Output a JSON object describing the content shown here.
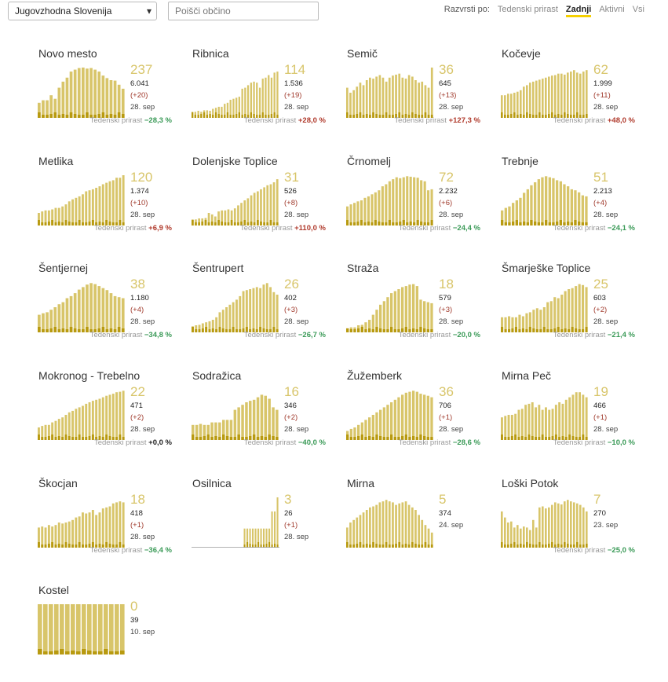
{
  "topbar": {
    "region_select": "Jugovzhodna Slovenija",
    "search_placeholder": "Poišči občino",
    "sort_label": "Razvrsti po:",
    "sort_options": [
      "Tedenski prirast",
      "Zadnji",
      "Aktivni",
      "Vsi"
    ],
    "sort_active": "Zadnji"
  },
  "colors": {
    "bar_light": "#d8c56a",
    "bar_dark": "#b89a10",
    "negative": "#3a9a57",
    "positive": "#b03a2c"
  },
  "footer_label": "Tedenski prirast",
  "chart_data": [
    {
      "type": "bar",
      "title": "Novo mesto",
      "active": "237",
      "total": "6.041",
      "change": "(+20)",
      "date": "28. sep",
      "weekly": "−28,3 %",
      "trend": "neg",
      "values": [
        30,
        35,
        35,
        45,
        38,
        60,
        72,
        80,
        92,
        96,
        99,
        100,
        98,
        99,
        96,
        92,
        84,
        79,
        75,
        74,
        66,
        58
      ]
    },
    {
      "type": "bar",
      "title": "Ribnica",
      "active": "114",
      "total": "1.536",
      "change": "(+19)",
      "date": "28. sep",
      "weekly": "+28,0 %",
      "trend": "pos",
      "values": [
        12,
        12,
        14,
        12,
        15,
        15,
        14,
        18,
        20,
        22,
        22,
        28,
        30,
        36,
        38,
        40,
        42,
        58,
        60,
        65,
        70,
        72,
        70,
        60,
        78,
        80,
        85,
        80,
        90,
        92
      ]
    },
    {
      "type": "bar",
      "title": "Semič",
      "active": "36",
      "total": "645",
      "change": "(+13)",
      "date": "28. sep",
      "weekly": "+127,3 %",
      "trend": "pos",
      "values": [
        60,
        50,
        55,
        62,
        70,
        65,
        75,
        80,
        78,
        82,
        85,
        80,
        72,
        80,
        84,
        86,
        88,
        80,
        78,
        85,
        82,
        75,
        70,
        72,
        65,
        60,
        100
      ]
    },
    {
      "type": "bar",
      "title": "Kočevje",
      "active": "62",
      "total": "1.999",
      "change": "(+11)",
      "date": "28. sep",
      "weekly": "+48,0 %",
      "trend": "pos",
      "values": [
        45,
        45,
        48,
        48,
        50,
        52,
        55,
        62,
        65,
        70,
        72,
        74,
        76,
        78,
        80,
        82,
        84,
        85,
        88,
        88,
        86,
        90,
        92,
        95,
        90,
        88,
        92,
        95
      ]
    },
    {
      "type": "bar",
      "title": "Metlika",
      "active": "120",
      "total": "1.374",
      "change": "(+10)",
      "date": "28. sep",
      "weekly": "+6,9 %",
      "trend": "pos",
      "values": [
        25,
        28,
        30,
        30,
        32,
        35,
        35,
        38,
        42,
        48,
        52,
        55,
        58,
        62,
        68,
        70,
        72,
        75,
        78,
        82,
        85,
        88,
        90,
        95,
        95,
        100
      ]
    },
    {
      "type": "bar",
      "title": "Dolenjske Toplice",
      "active": "31",
      "total": "526",
      "change": "(+8)",
      "date": "28. sep",
      "weekly": "+110,0 %",
      "trend": "pos",
      "values": [
        12,
        12,
        14,
        14,
        15,
        25,
        22,
        18,
        28,
        30,
        30,
        32,
        30,
        34,
        40,
        45,
        50,
        54,
        60,
        65,
        68,
        72,
        76,
        80,
        82,
        86,
        92
      ]
    },
    {
      "type": "bar",
      "title": "Črnomelj",
      "active": "72",
      "total": "2.232",
      "change": "(+6)",
      "date": "28. sep",
      "weekly": "−24,4 %",
      "trend": "neg",
      "values": [
        38,
        42,
        45,
        48,
        50,
        55,
        58,
        62,
        66,
        70,
        78,
        82,
        88,
        92,
        96,
        94,
        96,
        98,
        97,
        96,
        95,
        90,
        88,
        70,
        72
      ]
    },
    {
      "type": "bar",
      "title": "Trebnje",
      "active": "51",
      "total": "2.213",
      "change": "(+4)",
      "date": "28. sep",
      "weekly": "−24,1 %",
      "trend": "neg",
      "values": [
        30,
        35,
        38,
        45,
        50,
        55,
        65,
        72,
        80,
        86,
        92,
        96,
        98,
        96,
        94,
        90,
        88,
        82,
        78,
        72,
        70,
        66,
        60,
        58
      ]
    },
    {
      "type": "bar",
      "title": "Šentjernej",
      "active": "38",
      "total": "1.180",
      "change": "(+4)",
      "date": "28. sep",
      "weekly": "−34,8 %",
      "trend": "neg",
      "values": [
        35,
        38,
        40,
        45,
        50,
        56,
        60,
        68,
        72,
        78,
        85,
        90,
        95,
        98,
        96,
        92,
        88,
        84,
        78,
        72,
        70,
        68
      ]
    },
    {
      "type": "bar",
      "title": "Šentrupert",
      "active": "26",
      "total": "402",
      "change": "(+3)",
      "date": "28. sep",
      "weekly": "−26,7 %",
      "trend": "neg",
      "values": [
        12,
        14,
        15,
        18,
        20,
        22,
        25,
        30,
        40,
        45,
        50,
        55,
        60,
        65,
        72,
        82,
        84,
        86,
        88,
        90,
        88,
        95,
        98,
        90,
        80,
        75
      ]
    },
    {
      "type": "bar",
      "title": "Straža",
      "active": "18",
      "total": "579",
      "change": "(+3)",
      "date": "28. sep",
      "weekly": "−20,0 %",
      "trend": "neg",
      "values": [
        8,
        10,
        10,
        14,
        15,
        20,
        25,
        35,
        45,
        55,
        62,
        70,
        78,
        82,
        86,
        90,
        92,
        95,
        96,
        92,
        65,
        62,
        60,
        58
      ]
    },
    {
      "type": "bar",
      "title": "Šmarješke Toplice",
      "active": "25",
      "total": "603",
      "change": "(+2)",
      "date": "28. sep",
      "weekly": "−21,4 %",
      "trend": "neg",
      "values": [
        30,
        30,
        32,
        30,
        30,
        35,
        32,
        38,
        40,
        45,
        48,
        45,
        50,
        60,
        62,
        70,
        68,
        75,
        82,
        86,
        88,
        92,
        96,
        94,
        90
      ]
    },
    {
      "type": "bar",
      "title": "Mokronog - Trebelno",
      "active": "22",
      "total": "471",
      "change": "(+2)",
      "date": "28. sep",
      "weekly": "+0,0 %",
      "trend": "zero",
      "values": [
        25,
        28,
        30,
        30,
        35,
        38,
        42,
        45,
        50,
        55,
        58,
        62,
        65,
        68,
        72,
        75,
        78,
        80,
        82,
        85,
        88,
        90,
        92,
        95,
        96,
        98
      ]
    },
    {
      "type": "bar",
      "title": "Sodražica",
      "active": "16",
      "total": "346",
      "change": "(+2)",
      "date": "28. sep",
      "weekly": "−40,0 %",
      "trend": "neg",
      "values": [
        30,
        30,
        32,
        30,
        30,
        35,
        35,
        35,
        40,
        40,
        40,
        60,
        65,
        70,
        75,
        78,
        80,
        85,
        90,
        88,
        82,
        65,
        60
      ]
    },
    {
      "type": "bar",
      "title": "Žužemberk",
      "active": "36",
      "total": "706",
      "change": "(+1)",
      "date": "28. sep",
      "weekly": "−28,6 %",
      "trend": "neg",
      "values": [
        18,
        22,
        25,
        30,
        35,
        40,
        45,
        50,
        55,
        60,
        65,
        70,
        75,
        80,
        85,
        90,
        94,
        96,
        98,
        96,
        92,
        90,
        88,
        85
      ]
    },
    {
      "type": "bar",
      "title": "Mirna Peč",
      "active": "19",
      "total": "466",
      "change": "(+1)",
      "date": "28. sep",
      "weekly": "−10,0 %",
      "trend": "neg",
      "values": [
        45,
        48,
        50,
        50,
        52,
        60,
        62,
        70,
        72,
        75,
        65,
        70,
        60,
        65,
        60,
        62,
        70,
        75,
        72,
        80,
        85,
        90,
        95,
        95,
        90,
        85
      ]
    },
    {
      "type": "bar",
      "title": "Škocjan",
      "active": "18",
      "total": "418",
      "change": "(+1)",
      "date": "28. sep",
      "weekly": "−36,4 %",
      "trend": "neg",
      "values": [
        40,
        42,
        40,
        45,
        42,
        45,
        50,
        48,
        50,
        52,
        55,
        60,
        62,
        70,
        68,
        70,
        75,
        65,
        70,
        78,
        80,
        82,
        88,
        90,
        92,
        90
      ]
    },
    {
      "type": "bar",
      "title": "Osilnica",
      "active": "3",
      "total": "26",
      "change": "(+1)",
      "date": "28. sep",
      "weekly": "",
      "trend": "none",
      "values": [
        0,
        0,
        0,
        0,
        0,
        0,
        0,
        0,
        0,
        0,
        0,
        0,
        0,
        0,
        0,
        0,
        0,
        0,
        0,
        38,
        38,
        38,
        38,
        38,
        38,
        38,
        38,
        38,
        38,
        72,
        72,
        100
      ]
    },
    {
      "type": "bar",
      "title": "Mirna",
      "active": "5",
      "total": "374",
      "change": "",
      "date": "24. sep",
      "weekly": "",
      "trend": "none",
      "values": [
        40,
        50,
        55,
        60,
        65,
        70,
        75,
        80,
        82,
        85,
        90,
        92,
        95,
        92,
        90,
        85,
        88,
        90,
        92,
        85,
        80,
        75,
        65,
        55,
        45,
        38,
        30
      ]
    },
    {
      "type": "bar",
      "title": "Loški Potok",
      "active": "7",
      "total": "270",
      "change": "",
      "date": "23. sep",
      "weekly": "−25,0 %",
      "trend": "neg",
      "values": [
        72,
        60,
        50,
        52,
        40,
        45,
        38,
        42,
        40,
        35,
        55,
        40,
        80,
        82,
        78,
        80,
        85,
        90,
        88,
        86,
        92,
        95,
        92,
        90,
        88,
        85,
        80,
        72
      ]
    },
    {
      "type": "bar",
      "title": "Kostel",
      "active": "0",
      "total": "39",
      "change": "",
      "date": "10. sep",
      "weekly": "",
      "trend": "none",
      "values": [
        100,
        100,
        100,
        100,
        100,
        100,
        100,
        100,
        100,
        100,
        100,
        100,
        100,
        100,
        100,
        100
      ]
    }
  ]
}
